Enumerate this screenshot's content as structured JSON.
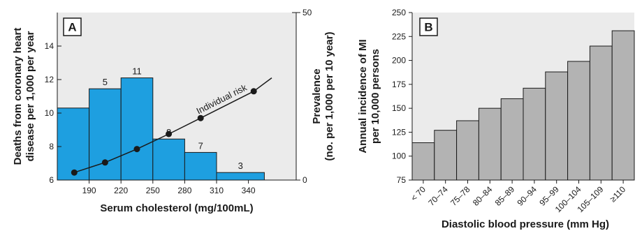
{
  "chart_data": [
    {
      "panel": "A",
      "type": "bar",
      "colors": {
        "bar": "#1e9fe0",
        "line": "#1a1a1a",
        "frame_fill": "#ebebeb"
      },
      "x": {
        "label": "Serum cholesterol (mg/100mL)",
        "range": [
          160,
          385
        ],
        "ticks": [
          190,
          220,
          250,
          280,
          310,
          340
        ],
        "tick_labels": [
          "190",
          "220",
          "250",
          "280",
          "310",
          "340"
        ]
      },
      "y_left": {
        "label_lines": [
          "Deaths from coronary heart",
          "disease per 1,000 per year"
        ],
        "range": [
          6,
          16
        ],
        "ticks": [
          6,
          8,
          10,
          12,
          14
        ],
        "tick_labels": [
          "6",
          "8",
          "10",
          "12",
          "14"
        ]
      },
      "y_right": {
        "label_lines": [
          "Prevalence",
          "(no. per 1,000 per 10 year)"
        ],
        "range": [
          0,
          50
        ],
        "ticks": [
          0,
          50
        ],
        "tick_labels": [
          "0",
          "50"
        ]
      },
      "bars": [
        {
          "x0": 160,
          "x1": 190,
          "value": 10.3,
          "label": ""
        },
        {
          "x0": 190,
          "x1": 220,
          "value": 11.45,
          "label": "5"
        },
        {
          "x0": 220,
          "x1": 250,
          "value": 12.1,
          "label": "11"
        },
        {
          "x0": 250,
          "x1": 280,
          "value": 8.45,
          "label": "8"
        },
        {
          "x0": 280,
          "x1": 310,
          "value": 7.65,
          "label": "7"
        },
        {
          "x0": 310,
          "x1": 355,
          "value": 6.45,
          "label": "3"
        }
      ],
      "risk_series": {
        "name": "Individual risk",
        "points": [
          {
            "x": 176,
            "y": 6.45
          },
          {
            "x": 205,
            "y": 7.05
          },
          {
            "x": 235,
            "y": 7.85
          },
          {
            "x": 265,
            "y": 8.75
          },
          {
            "x": 295,
            "y": 9.7
          },
          {
            "x": 345,
            "y": 11.3
          }
        ],
        "line_end": {
          "x": 362,
          "y": 12.1
        }
      }
    },
    {
      "panel": "B",
      "type": "bar",
      "colors": {
        "bar": "#b3b3b3",
        "frame_fill": "#ebebeb"
      },
      "x": {
        "label": "Diastolic blood pressure (mm Hg)"
      },
      "y": {
        "label_lines": [
          "Annual incidence of MI",
          "per 10,000 persons"
        ],
        "range": [
          75,
          250
        ],
        "ticks": [
          75,
          100,
          125,
          150,
          175,
          200,
          225,
          250
        ],
        "tick_labels": [
          "75",
          "100",
          "125",
          "150",
          "175",
          "200",
          "225",
          "250"
        ]
      },
      "categories": [
        "< 70",
        "70–74",
        "75–78",
        "80–84",
        "85–89",
        "90–94",
        "95–99",
        "100–104",
        "105–109",
        "≥110"
      ],
      "values": [
        114,
        127,
        137,
        150,
        160,
        171,
        188,
        199,
        215,
        231
      ]
    }
  ]
}
